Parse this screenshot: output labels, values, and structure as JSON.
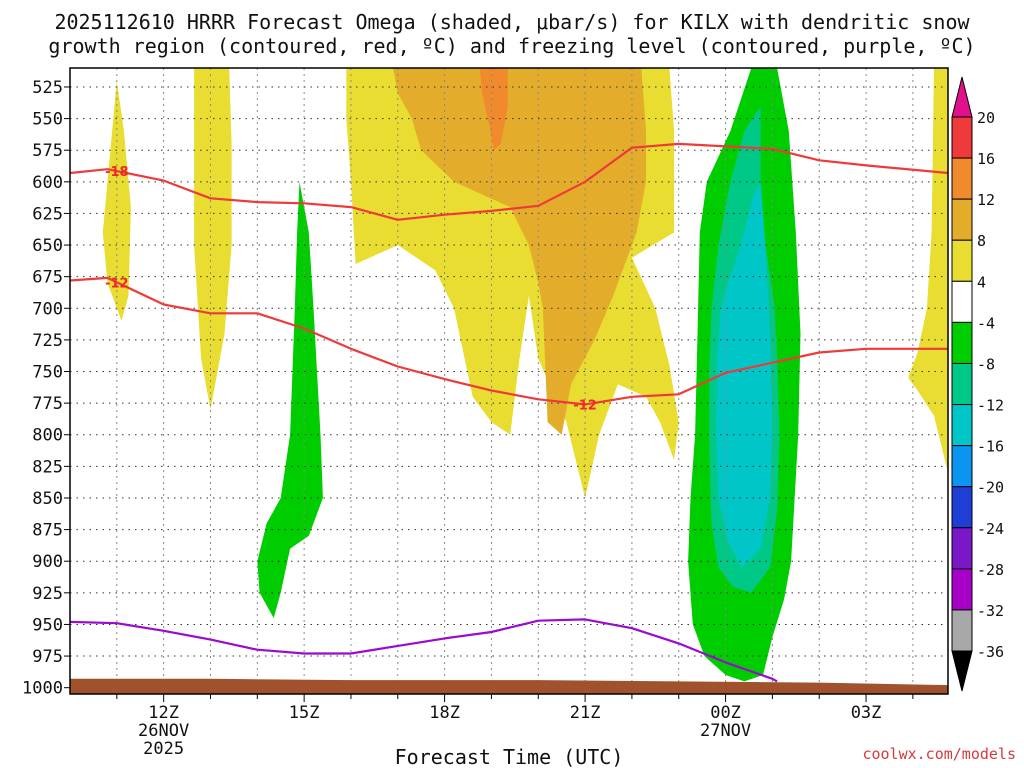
{
  "chart_data": {
    "type": "time-height cross section (filled contours)",
    "title_line1": "2025112610 HRRR Forecast Omega (shaded, μbar/s) for KILX with dendritic snow",
    "title_line2": "growth region (contoured, red, ºC) and freezing level (contoured, purple, ºC)",
    "xlabel": "Forecast Time (UTC)",
    "ylabel": "",
    "credit": "coolwx.com/models",
    "x_range_hours": [
      10.0,
      28.75
    ],
    "y_range_mb": [
      1005,
      510
    ],
    "x_ticks": [
      {
        "h": 12,
        "label": "12Z",
        "sub1": "26NOV",
        "sub2": "2025"
      },
      {
        "h": 15,
        "label": "15Z",
        "sub1": "",
        "sub2": ""
      },
      {
        "h": 18,
        "label": "18Z",
        "sub1": "",
        "sub2": ""
      },
      {
        "h": 21,
        "label": "21Z",
        "sub1": "",
        "sub2": ""
      },
      {
        "h": 24,
        "label": "00Z",
        "sub1": "27NOV",
        "sub2": ""
      },
      {
        "h": 27,
        "label": "03Z",
        "sub1": "",
        "sub2": ""
      }
    ],
    "y_ticks": [
      525,
      550,
      575,
      600,
      625,
      650,
      675,
      700,
      725,
      750,
      775,
      800,
      825,
      850,
      875,
      900,
      925,
      950,
      975,
      1000
    ],
    "colorbar": {
      "labels": [
        20,
        16,
        12,
        8,
        4,
        -4,
        -8,
        -12,
        -16,
        -20,
        -24,
        -28,
        -32,
        -36
      ],
      "bins": [
        {
          "lo": 16,
          "hi": 20,
          "color": "#ee3a3a"
        },
        {
          "lo": 12,
          "hi": 16,
          "color": "#f08a2c"
        },
        {
          "lo": 8,
          "hi": 12,
          "color": "#e3ad2b"
        },
        {
          "lo": 4,
          "hi": 8,
          "color": "#e8dd30"
        },
        {
          "lo": -4,
          "hi": 4,
          "color": "#ffffff"
        },
        {
          "lo": -8,
          "hi": -4,
          "color": "#00cd00"
        },
        {
          "lo": -12,
          "hi": -8,
          "color": "#00c987"
        },
        {
          "lo": -16,
          "hi": -12,
          "color": "#00c6c8"
        },
        {
          "lo": -20,
          "hi": -16,
          "color": "#0a96f0"
        },
        {
          "lo": -24,
          "hi": -20,
          "color": "#1e3ed6"
        },
        {
          "lo": -28,
          "hi": -24,
          "color": "#7a17c6"
        },
        {
          "lo": -32,
          "hi": -28,
          "color": "#a700c9"
        },
        {
          "lo": -36,
          "hi": -32,
          "color": "#a8a8a8"
        }
      ],
      "top_arrow_color": "#e0118a",
      "bottom_arrow_color": "#000000"
    },
    "shaded_regions": [
      {
        "name": "yellow-band-11z",
        "color": "#e8dd30",
        "pts": [
          [
            11.1,
            710
          ],
          [
            10.8,
            680
          ],
          [
            10.7,
            640
          ],
          [
            10.85,
            580
          ],
          [
            11.0,
            520
          ],
          [
            11.15,
            560
          ],
          [
            11.3,
            620
          ],
          [
            11.25,
            690
          ]
        ]
      },
      {
        "name": "yellow-band-13z",
        "color": "#e8dd30",
        "pts": [
          [
            13.0,
            780
          ],
          [
            12.8,
            740
          ],
          [
            12.65,
            650
          ],
          [
            12.65,
            560
          ],
          [
            12.65,
            510
          ],
          [
            13.4,
            510
          ],
          [
            13.45,
            570
          ],
          [
            13.45,
            650
          ],
          [
            13.3,
            720
          ]
        ]
      },
      {
        "name": "yellow-main",
        "color": "#e8dd30",
        "pts": [
          [
            15.9,
            510
          ],
          [
            21.0,
            510
          ],
          [
            22.8,
            510
          ],
          [
            22.9,
            560
          ],
          [
            22.9,
            640
          ],
          [
            22.0,
            660
          ],
          [
            22.5,
            700
          ],
          [
            22.8,
            745
          ],
          [
            23.0,
            790
          ],
          [
            22.9,
            820
          ],
          [
            22.6,
            790
          ],
          [
            22.3,
            770
          ],
          [
            21.7,
            760
          ],
          [
            21.3,
            800
          ],
          [
            21.0,
            850
          ],
          [
            20.8,
            820
          ],
          [
            20.6,
            790
          ],
          [
            20.0,
            740
          ],
          [
            19.8,
            690
          ],
          [
            19.6,
            740
          ],
          [
            19.4,
            800
          ],
          [
            19.0,
            790
          ],
          [
            18.6,
            770
          ],
          [
            18.2,
            700
          ],
          [
            17.8,
            670
          ],
          [
            17.0,
            650
          ],
          [
            16.1,
            665
          ],
          [
            16.0,
            600
          ],
          [
            15.9,
            550
          ]
        ]
      },
      {
        "name": "yellow-band-27z",
        "color": "#e8dd30",
        "pts": [
          [
            28.75,
            510
          ],
          [
            28.75,
            830
          ],
          [
            28.45,
            785
          ],
          [
            28.1,
            765
          ],
          [
            27.9,
            755
          ],
          [
            28.1,
            735
          ],
          [
            28.3,
            700
          ],
          [
            28.4,
            640
          ],
          [
            28.45,
            510
          ]
        ]
      },
      {
        "name": "orange-main",
        "color": "#e3ad2b",
        "pts": [
          [
            16.9,
            510
          ],
          [
            22.2,
            510
          ],
          [
            22.3,
            560
          ],
          [
            22.3,
            600
          ],
          [
            22.1,
            640
          ],
          [
            21.9,
            660
          ],
          [
            21.6,
            690
          ],
          [
            21.2,
            725
          ],
          [
            20.7,
            760
          ],
          [
            20.5,
            800
          ],
          [
            20.2,
            790
          ],
          [
            20.1,
            700
          ],
          [
            20.0,
            680
          ],
          [
            19.8,
            650
          ],
          [
            19.4,
            620
          ],
          [
            18.8,
            610
          ],
          [
            18.2,
            600
          ],
          [
            17.5,
            575
          ],
          [
            17.3,
            550
          ],
          [
            17.0,
            530
          ]
        ]
      },
      {
        "name": "orange-core",
        "color": "#f08a2c",
        "pts": [
          [
            18.75,
            510
          ],
          [
            19.35,
            510
          ],
          [
            19.35,
            540
          ],
          [
            19.2,
            570
          ],
          [
            19.05,
            575
          ],
          [
            18.95,
            555
          ],
          [
            18.8,
            530
          ]
        ]
      },
      {
        "name": "green-plume-15z",
        "color": "#00cd00",
        "pts": [
          [
            14.9,
            600
          ],
          [
            15.1,
            640
          ],
          [
            15.2,
            700
          ],
          [
            15.35,
            800
          ],
          [
            15.4,
            850
          ],
          [
            15.1,
            880
          ],
          [
            14.7,
            890
          ],
          [
            14.5,
            925
          ],
          [
            14.35,
            945
          ],
          [
            14.05,
            925
          ],
          [
            14.0,
            900
          ],
          [
            14.2,
            870
          ],
          [
            14.5,
            850
          ],
          [
            14.7,
            800
          ],
          [
            14.8,
            700
          ],
          [
            14.85,
            640
          ]
        ]
      },
      {
        "name": "green-main",
        "color": "#00cd00",
        "pts": [
          [
            24.55,
            510
          ],
          [
            25.1,
            510
          ],
          [
            25.35,
            560
          ],
          [
            25.5,
            640
          ],
          [
            25.6,
            720
          ],
          [
            25.55,
            800
          ],
          [
            25.4,
            900
          ],
          [
            25.25,
            930
          ],
          [
            25.0,
            960
          ],
          [
            24.8,
            990
          ],
          [
            24.4,
            995
          ],
          [
            24.0,
            990
          ],
          [
            23.55,
            975
          ],
          [
            23.3,
            950
          ],
          [
            23.2,
            900
          ],
          [
            23.25,
            850
          ],
          [
            23.35,
            800
          ],
          [
            23.4,
            720
          ],
          [
            23.45,
            640
          ],
          [
            23.6,
            600
          ],
          [
            24.1,
            560
          ]
        ]
      },
      {
        "name": "teal-main",
        "color": "#00c987",
        "pts": [
          [
            24.75,
            640
          ],
          [
            24.85,
            650
          ],
          [
            25.05,
            700
          ],
          [
            25.1,
            740
          ],
          [
            25.15,
            800
          ],
          [
            25.1,
            860
          ],
          [
            24.95,
            905
          ],
          [
            24.55,
            925
          ],
          [
            24.15,
            920
          ],
          [
            23.85,
            905
          ],
          [
            23.7,
            870
          ],
          [
            23.65,
            810
          ],
          [
            23.65,
            750
          ],
          [
            23.7,
            700
          ],
          [
            23.85,
            650
          ],
          [
            24.1,
            600
          ],
          [
            24.4,
            560
          ],
          [
            24.75,
            540
          ]
        ]
      },
      {
        "name": "cyan-main",
        "color": "#00c6c8",
        "pts": [
          [
            24.75,
            600
          ],
          [
            24.85,
            650
          ],
          [
            24.95,
            720
          ],
          [
            25.0,
            790
          ],
          [
            24.95,
            850
          ],
          [
            24.75,
            890
          ],
          [
            24.35,
            905
          ],
          [
            24.05,
            885
          ],
          [
            23.85,
            850
          ],
          [
            23.8,
            800
          ],
          [
            23.82,
            740
          ],
          [
            23.9,
            700
          ],
          [
            24.05,
            680
          ],
          [
            24.2,
            665
          ],
          [
            24.4,
            640
          ],
          [
            24.6,
            610
          ]
        ]
      }
    ],
    "dgz_minus18_line": {
      "label": "-18",
      "label_hour": 11.0,
      "pts": [
        [
          10.0,
          593
        ],
        [
          10.8,
          590
        ],
        [
          12.0,
          599
        ],
        [
          13.0,
          613
        ],
        [
          14.0,
          616
        ],
        [
          15.0,
          617
        ],
        [
          16.0,
          620
        ],
        [
          17.0,
          630
        ],
        [
          18.0,
          626
        ],
        [
          19.0,
          623
        ],
        [
          20.0,
          619
        ],
        [
          21.0,
          600
        ],
        [
          22.0,
          573
        ],
        [
          23.0,
          570
        ],
        [
          24.0,
          572
        ],
        [
          25.0,
          574
        ],
        [
          26.0,
          583
        ],
        [
          27.0,
          587
        ],
        [
          28.75,
          593
        ]
      ]
    },
    "dgz_minus12_line": {
      "label": "-12",
      "label_hour": 11.0,
      "pts": [
        [
          10.0,
          678
        ],
        [
          10.8,
          676
        ],
        [
          12.0,
          697
        ],
        [
          13.0,
          704
        ],
        [
          14.0,
          704
        ],
        [
          15.0,
          716
        ],
        [
          16.0,
          732
        ],
        [
          17.0,
          746
        ],
        [
          18.0,
          756
        ],
        [
          19.0,
          765
        ],
        [
          20.0,
          772
        ],
        [
          21.0,
          776
        ],
        [
          22.0,
          770
        ],
        [
          23.0,
          768
        ],
        [
          24.0,
          751
        ],
        [
          25.0,
          743
        ],
        [
          26.0,
          735
        ],
        [
          27.0,
          732
        ],
        [
          28.75,
          732
        ]
      ]
    },
    "freezing_level_line": {
      "pts": [
        [
          10.0,
          948
        ],
        [
          11.0,
          949
        ],
        [
          12.0,
          955
        ],
        [
          13.0,
          962
        ],
        [
          14.0,
          970
        ],
        [
          15.0,
          973
        ],
        [
          16.0,
          973
        ],
        [
          17.0,
          967
        ],
        [
          18.0,
          961
        ],
        [
          19.0,
          956
        ],
        [
          20.0,
          947
        ],
        [
          21.0,
          946
        ],
        [
          22.0,
          953
        ],
        [
          23.0,
          965
        ],
        [
          24.0,
          980
        ],
        [
          25.0,
          993
        ],
        [
          25.1,
          995
        ]
      ]
    },
    "surface_terrain": {
      "color": "#a0522d",
      "top_mb": [
        [
          10.0,
          993
        ],
        [
          13.0,
          993
        ],
        [
          16.0,
          994
        ],
        [
          20.0,
          994
        ],
        [
          23.0,
          995
        ],
        [
          26.0,
          996
        ],
        [
          28.75,
          998
        ]
      ]
    }
  }
}
